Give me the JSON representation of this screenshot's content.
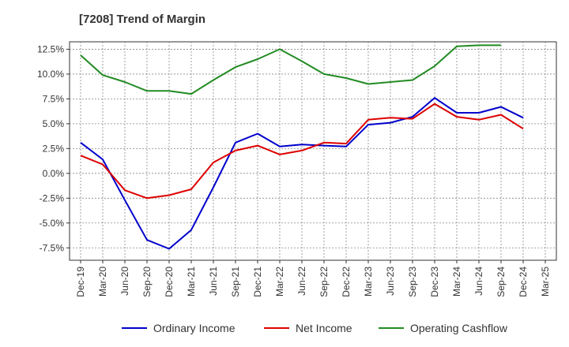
{
  "title": "[7208]  Trend of Margin",
  "chart_data": {
    "type": "line",
    "title": "[7208]  Trend of Margin",
    "xlabel": "",
    "ylabel": "",
    "categories": [
      "Dec-19",
      "Mar-20",
      "Jun-20",
      "Sep-20",
      "Dec-20",
      "Mar-21",
      "Jun-21",
      "Sep-21",
      "Dec-21",
      "Mar-22",
      "Jun-22",
      "Sep-22",
      "Dec-22",
      "Mar-23",
      "Jun-23",
      "Sep-23",
      "Dec-23",
      "Mar-24",
      "Jun-24",
      "Sep-24",
      "Dec-24",
      "Mar-25"
    ],
    "ylim": [
      -8.75,
      13.25
    ],
    "yticks": [
      -7.5,
      -5.0,
      -2.5,
      0.0,
      2.5,
      5.0,
      7.5,
      10.0,
      12.5
    ],
    "ytick_labels": [
      "-7.5%",
      "-5.0%",
      "-2.5%",
      "0.0%",
      "2.5%",
      "5.0%",
      "7.5%",
      "10.0%",
      "12.5%"
    ],
    "grid": true,
    "legend_position": "bottom",
    "series": [
      {
        "name": "Ordinary Income",
        "color": "#0000cc",
        "values": [
          3.1,
          1.4,
          -2.7,
          -6.7,
          -7.6,
          -5.7,
          -1.4,
          3.1,
          4.0,
          2.7,
          2.9,
          2.8,
          2.7,
          4.9,
          5.1,
          5.7,
          7.6,
          6.1,
          6.1,
          6.7,
          5.6,
          null
        ]
      },
      {
        "name": "Net Income",
        "color": "#dd0000",
        "values": [
          1.8,
          0.9,
          -1.7,
          -2.5,
          -2.2,
          -1.6,
          1.1,
          2.3,
          2.8,
          1.9,
          2.3,
          3.1,
          3.0,
          5.4,
          5.6,
          5.5,
          7.0,
          5.7,
          5.4,
          5.9,
          4.5,
          null
        ]
      },
      {
        "name": "Operating Cashflow",
        "color": "#228b22",
        "values": [
          11.9,
          9.9,
          9.2,
          8.3,
          8.3,
          8.0,
          9.4,
          10.7,
          11.5,
          12.5,
          11.3,
          10.0,
          9.6,
          9.0,
          9.2,
          9.4,
          10.8,
          12.8,
          12.9,
          12.9,
          null,
          null
        ]
      }
    ]
  }
}
